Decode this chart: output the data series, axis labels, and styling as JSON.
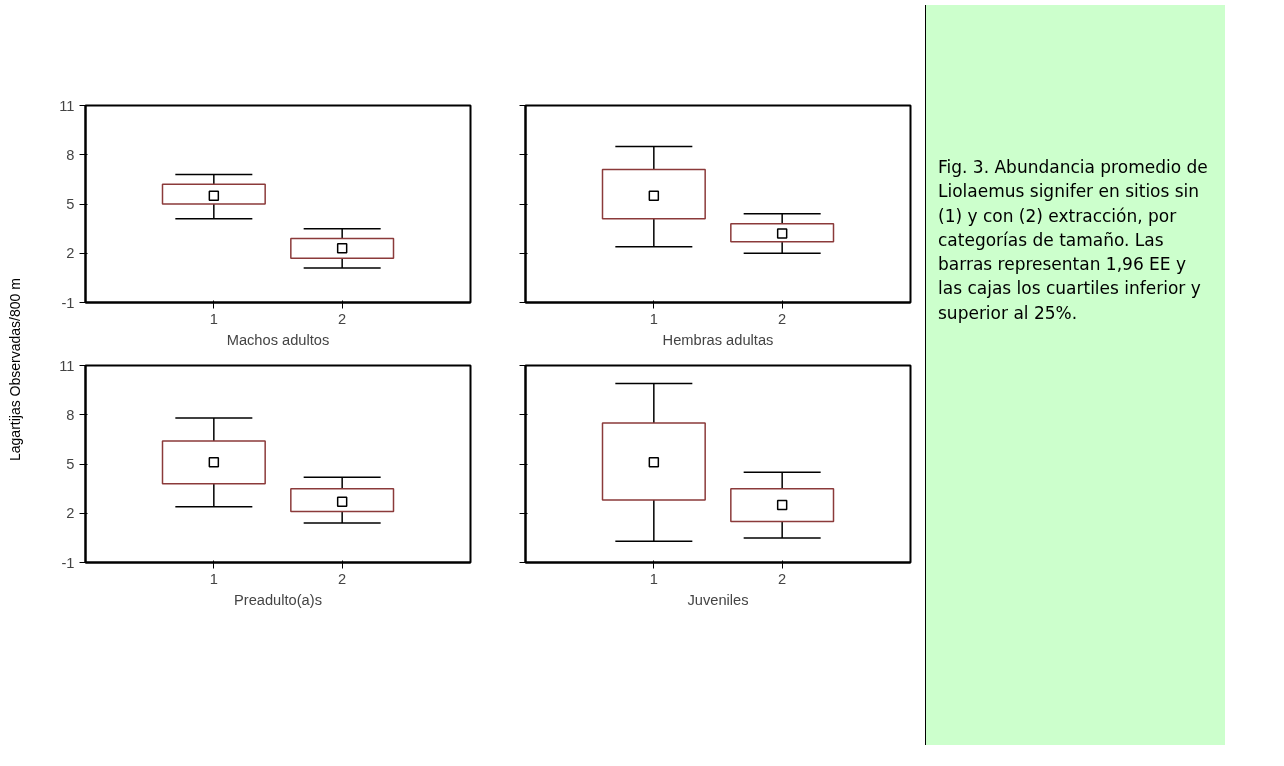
{
  "chart_data": [
    {
      "type": "box",
      "categories": [
        "1",
        "2"
      ],
      "xlabel": "Machos adultos",
      "ylabel": "Lagartijas Observadas/800 m",
      "ylim": [
        -1,
        11
      ],
      "yticks": [
        -1,
        2,
        5,
        8,
        11
      ],
      "color": "#8b3a3a",
      "marker": "square",
      "tick_labels": "xy",
      "boxes": [
        {
          "low": 4.1,
          "q1": 5.0,
          "median": 5.5,
          "q3": 6.2,
          "high": 6.8
        },
        {
          "low": 1.1,
          "q1": 1.7,
          "median": 2.3,
          "q3": 2.9,
          "high": 3.5
        }
      ]
    },
    {
      "type": "box",
      "categories": [
        "1",
        "2"
      ],
      "xlabel": "Hembras adultas",
      "ylim": [
        -1,
        11
      ],
      "yticks": [
        -1,
        2,
        5,
        8,
        11
      ],
      "color": "#8b3a3a",
      "marker": "square",
      "tick_labels": "x",
      "annotations": [
        "Fig. 3. Abundancia promedio de Liolaemus signifer en sitios sin (1) y con (2) extracción, por categorías de tamaño. Las barras representan 1,96 EE y las cajas los cuartiles inferior y superior al 25%."
      ],
      "boxes": [
        {
          "low": 2.4,
          "q1": 4.1,
          "median": 5.5,
          "q3": 7.1,
          "high": 8.5
        },
        {
          "low": 2.0,
          "q1": 2.7,
          "median": 3.2,
          "q3": 3.8,
          "high": 4.4
        }
      ]
    },
    {
      "type": "box",
      "categories": [
        "1",
        "2"
      ],
      "xlabel": "Preadulto(a)s",
      "ylim": [
        -1,
        11
      ],
      "yticks": [
        -1,
        2,
        5,
        8,
        11
      ],
      "color": "#8b3a3a",
      "marker": "square",
      "tick_labels": "xy",
      "boxes": [
        {
          "low": 2.4,
          "q1": 3.8,
          "median": 5.1,
          "q3": 6.4,
          "high": 7.8
        },
        {
          "low": 1.4,
          "q1": 2.1,
          "median": 2.7,
          "q3": 3.5,
          "high": 4.2
        }
      ]
    },
    {
      "type": "box",
      "categories": [
        "1",
        "2"
      ],
      "xlabel": "Juveniles",
      "ylim": [
        -1,
        11
      ],
      "yticks": [
        -1,
        2,
        5,
        8,
        11
      ],
      "color": "#8b3a3a",
      "marker": "square",
      "tick_labels": "x",
      "boxes": [
        {
          "low": 0.3,
          "q1": 2.8,
          "median": 5.1,
          "q3": 7.5,
          "high": 9.9
        },
        {
          "low": 0.5,
          "q1": 1.5,
          "median": 2.5,
          "q3": 3.5,
          "high": 4.5
        }
      ]
    }
  ]
}
